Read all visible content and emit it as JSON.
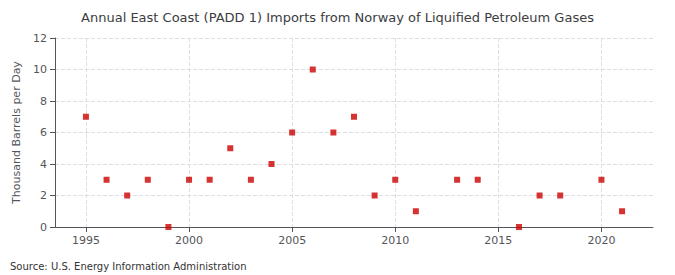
{
  "chart_data": {
    "type": "scatter",
    "title": "Annual East Coast (PADD 1) Imports from Norway of Liquified Petroleum Gases",
    "ylabel": "Thousand Barrels per Day",
    "annotation": "Source: U.S. Energy Information Administration",
    "x": [
      1995,
      1996,
      1997,
      1998,
      1999,
      2000,
      2001,
      2002,
      2003,
      2004,
      2005,
      2006,
      2007,
      2008,
      2009,
      2010,
      2011,
      2013,
      2014,
      2016,
      2017,
      2018,
      2020,
      2021
    ],
    "values": [
      7,
      3,
      2,
      3,
      0,
      3,
      3,
      5,
      3,
      4,
      6,
      10,
      6,
      7,
      2,
      3,
      1,
      3,
      3,
      0,
      2,
      2,
      3,
      1
    ],
    "color": "#cc0000",
    "marker": "square",
    "xlim": [
      1993.5,
      2022.5
    ],
    "xticks": [
      1995,
      2000,
      2005,
      2010,
      2015,
      2020
    ],
    "ylim": [
      0,
      12
    ],
    "yticks": [
      0,
      2,
      4,
      6,
      8,
      10,
      12
    ],
    "grid": true
  }
}
